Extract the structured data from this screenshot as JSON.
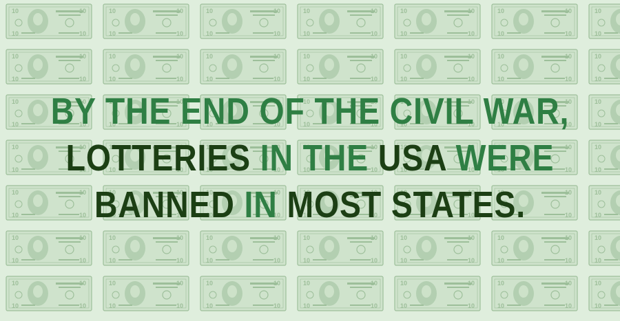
{
  "colors": {
    "background": "#dfeedd",
    "bill_fill": "#cfe3cc",
    "bill_ink": "#9dbf9a",
    "text_green": "#2f7f44",
    "text_dark": "#1c3f14"
  },
  "background_pattern": {
    "icon": "ten-dollar-bill-icon",
    "denomination": "10",
    "rows": 7,
    "columns": 7
  },
  "headline": {
    "lines": [
      [
        {
          "text": "BY THE END OF THE CIVIL WAR,",
          "tone": "green"
        }
      ],
      [
        {
          "text": "LOTTERIES",
          "tone": "dark"
        },
        {
          "text": " IN THE ",
          "tone": "green"
        },
        {
          "text": "USA",
          "tone": "dark"
        },
        {
          "text": " WERE",
          "tone": "green"
        }
      ],
      [
        {
          "text": "BANNED",
          "tone": "dark"
        },
        {
          "text": " IN ",
          "tone": "green"
        },
        {
          "text": "MOST STATES.",
          "tone": "dark"
        }
      ]
    ]
  }
}
